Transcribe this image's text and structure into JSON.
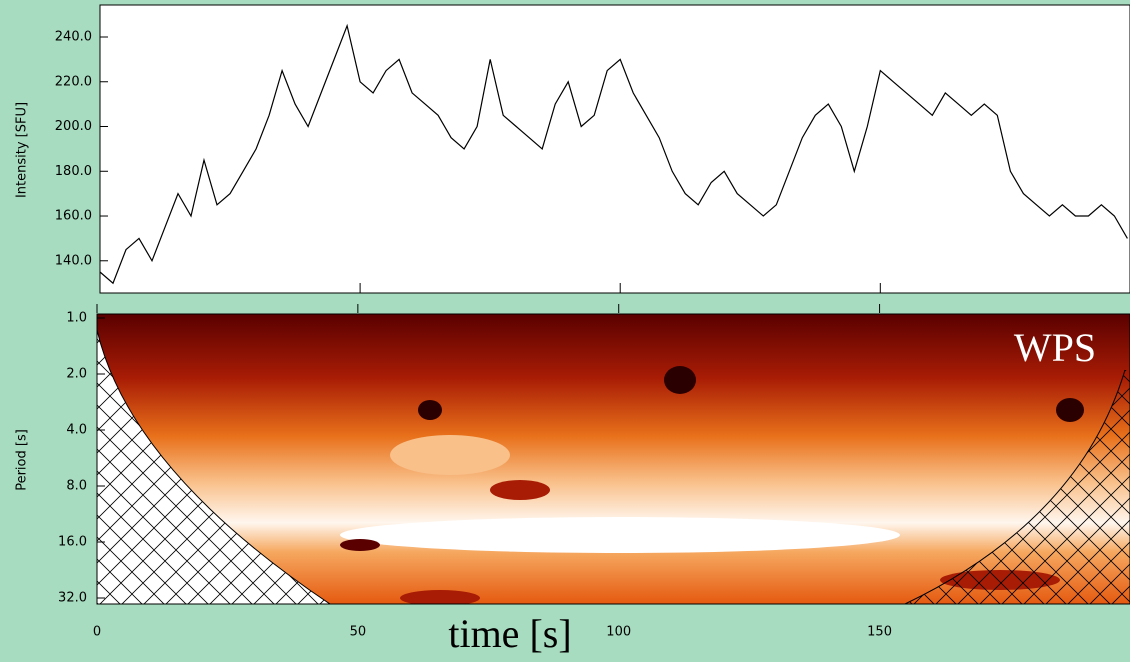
{
  "chart_data": [
    {
      "type": "line",
      "ylabel": "Intensity [SFU]",
      "x": [
        0,
        2.5,
        5,
        7.5,
        10,
        12.5,
        15,
        17.5,
        20,
        22.5,
        25,
        27.5,
        30,
        32.5,
        35,
        37.5,
        40,
        42.5,
        45,
        47.5,
        50,
        52.5,
        55,
        57.5,
        60,
        62.5,
        65,
        67.5,
        70,
        72.5,
        75,
        77.5,
        80,
        82.5,
        85,
        87.5,
        90,
        92.5,
        95,
        97.5,
        100,
        102.5,
        105,
        107.5,
        110,
        112.5,
        115,
        117.5,
        120,
        122.5,
        125,
        127.5,
        130,
        132.5,
        135,
        137.5,
        140,
        142.5,
        145,
        147.5,
        150,
        152.5,
        155,
        157.5,
        160,
        162.5,
        165,
        167.5,
        170,
        172.5,
        175,
        177.5,
        180,
        182.5,
        185,
        187.5,
        190,
        192.5,
        195,
        197.5
      ],
      "series": [
        {
          "color": "#000000",
          "values": [
            135,
            130,
            145,
            150,
            140,
            155,
            170,
            160,
            185,
            165,
            170,
            180,
            190,
            205,
            225,
            210,
            200,
            215,
            230,
            245,
            220,
            215,
            225,
            230,
            215,
            210,
            205,
            195,
            190,
            200,
            230,
            205,
            200,
            195,
            190,
            210,
            220,
            200,
            205,
            225,
            230,
            215,
            205,
            195,
            180,
            170,
            165,
            175,
            180,
            170,
            165,
            160,
            165,
            180,
            195,
            205,
            210,
            200,
            180,
            200,
            225,
            220,
            215,
            210,
            205,
            215,
            210,
            205,
            210,
            205,
            180,
            170,
            165,
            160,
            165,
            160,
            160,
            165,
            160,
            150
          ]
        }
      ],
      "xlim": [
        0,
        198
      ],
      "ylim": [
        125.6,
        254.3
      ],
      "yticks": [
        {
          "value": 140,
          "label": "140.0"
        },
        {
          "value": 160,
          "label": "160.0"
        },
        {
          "value": 180,
          "label": "180.0"
        },
        {
          "value": 200,
          "label": "200.0"
        },
        {
          "value": 220,
          "label": "220.0"
        },
        {
          "value": 240,
          "label": "240.0"
        }
      ],
      "xticks": [
        0,
        50,
        100,
        150
      ]
    },
    {
      "type": "wavelet",
      "ylabel": "Period [s]",
      "xlabel": "time [s]",
      "annotation": "WPS",
      "log_y": true,
      "xlim": [
        0,
        198
      ],
      "ylim": [
        1,
        32
      ],
      "yticks": [
        {
          "value": 1,
          "label": "1.0"
        },
        {
          "value": 2,
          "label": "2.0"
        },
        {
          "value": 4,
          "label": "4.0"
        },
        {
          "value": 8,
          "label": "8.0"
        },
        {
          "value": 16,
          "label": "16.0"
        },
        {
          "value": 32,
          "label": "32.0"
        }
      ],
      "xticks": [
        0,
        50,
        100,
        150
      ]
    }
  ]
}
